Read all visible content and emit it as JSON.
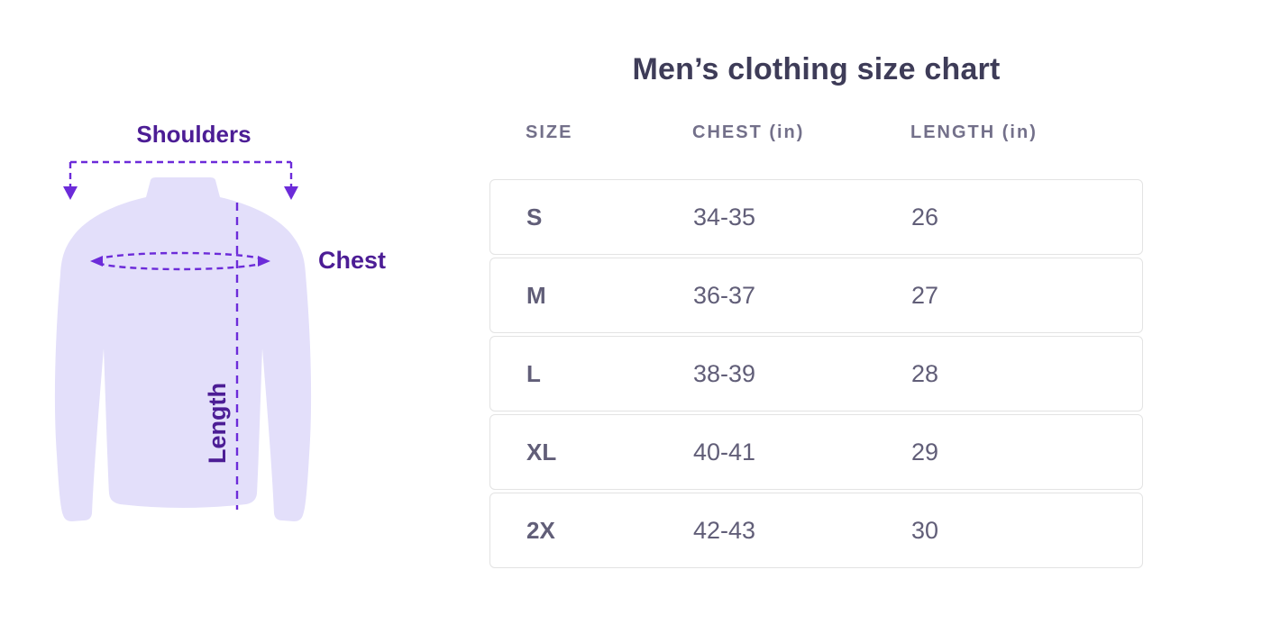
{
  "diagram": {
    "labels": {
      "shoulders": "Shoulders",
      "chest": "Chest",
      "length": "Length"
    },
    "colors": {
      "shirt_fill": "#E3DFFA",
      "annotation_line": "#6C2BD9",
      "label_text": "#4C1D95"
    }
  },
  "size_chart": {
    "title": "Men’s clothing size chart",
    "columns": [
      "SIZE",
      "CHEST (in)",
      "LENGTH (in)"
    ],
    "rows": [
      {
        "size": "S",
        "chest": "34-35",
        "length": "26"
      },
      {
        "size": "M",
        "chest": "36-37",
        "length": "27"
      },
      {
        "size": "L",
        "chest": "38-39",
        "length": "28"
      },
      {
        "size": "XL",
        "chest": "40-41",
        "length": "29"
      },
      {
        "size": "2X",
        "chest": "42-43",
        "length": "30"
      }
    ],
    "colors": {
      "title_text": "#3E3C58",
      "header_text": "#73708A",
      "cell_text": "#615E78",
      "row_border": "#E3E3E3"
    }
  },
  "chart_data": {
    "type": "table",
    "title": "Men’s clothing size chart",
    "columns": [
      "SIZE",
      "CHEST (in)",
      "LENGTH (in)"
    ],
    "rows": [
      [
        "S",
        "34-35",
        "26"
      ],
      [
        "M",
        "36-37",
        "27"
      ],
      [
        "L",
        "38-39",
        "28"
      ],
      [
        "XL",
        "40-41",
        "29"
      ],
      [
        "2X",
        "42-43",
        "30"
      ]
    ],
    "units": "inches",
    "annotations": [
      "Shoulders",
      "Chest",
      "Length"
    ]
  }
}
